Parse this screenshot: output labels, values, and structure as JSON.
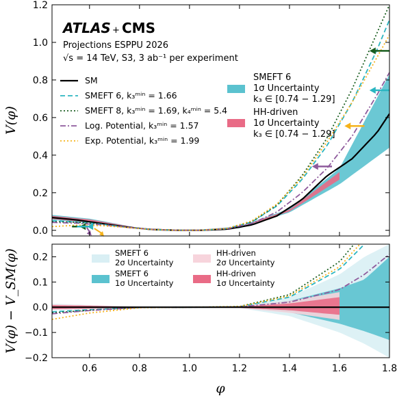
{
  "chart_data": [
    {
      "type": "line",
      "panel": "top",
      "ylabel": "V(φ)",
      "xlim": [
        0.45,
        1.8
      ],
      "ylim": [
        -0.03,
        1.2
      ],
      "xticks": [
        0.6,
        0.8,
        1.0,
        1.2,
        1.4,
        1.6,
        1.8
      ],
      "yticks": [
        0.0,
        0.2,
        0.4,
        0.6,
        0.8,
        1.0,
        1.2
      ],
      "ytick_labels": [
        "0.0",
        "0.2",
        "0.4",
        "0.6",
        "0.8",
        "1.0",
        "1.2"
      ],
      "annotation": {
        "atlas": "ATLAS",
        "plus": "+",
        "cms": "CMS",
        "line1": "Projections ESPPU 2026",
        "line2": "√s = 14 TeV, S3, 3 ab⁻¹ per experiment"
      },
      "series": [
        {
          "name": "SM",
          "color": "#000000",
          "style": "solid",
          "x": [
            0.45,
            0.55,
            0.65,
            0.75,
            0.85,
            0.95,
            1.0,
            1.05,
            1.15,
            1.25,
            1.35,
            1.45,
            1.55,
            1.65,
            1.75,
            1.8
          ],
          "y": [
            0.068,
            0.055,
            0.036,
            0.017,
            0.004,
            0.0003,
            0.0,
            0.0003,
            0.0059,
            0.029,
            0.077,
            0.164,
            0.29,
            0.38,
            0.52,
            0.62
          ]
        },
        {
          "name": "SMEFT 6, k₃ᵐⁱⁿ = 1.66",
          "color": "#2bb5c1",
          "style": "dashed",
          "x": [
            0.45,
            0.55,
            0.65,
            0.75,
            0.85,
            0.95,
            1.0,
            1.05,
            1.15,
            1.25,
            1.35,
            1.45,
            1.55,
            1.65,
            1.75,
            1.8
          ],
          "y": [
            0.05,
            0.045,
            0.032,
            0.016,
            0.004,
            0.0003,
            0.0,
            0.0004,
            0.009,
            0.045,
            0.13,
            0.27,
            0.45,
            0.68,
            0.96,
            1.12
          ]
        },
        {
          "name": "SMEFT 8, k₃ᵐⁱⁿ = 1.69, k₄ᵐⁱⁿ = 5.4",
          "color": "#1a5e20",
          "style": "dotted",
          "x": [
            0.45,
            0.55,
            0.65,
            0.75,
            0.85,
            0.95,
            1.0,
            1.05,
            1.15,
            1.25,
            1.35,
            1.45,
            1.55,
            1.65,
            1.75,
            1.8
          ],
          "y": [
            0.046,
            0.043,
            0.031,
            0.016,
            0.004,
            0.0003,
            0.0,
            0.0004,
            0.009,
            0.046,
            0.135,
            0.29,
            0.49,
            0.75,
            1.05,
            1.2
          ]
        },
        {
          "name": "Log. Potential, k₃ᵐⁱⁿ = 1.57",
          "color": "#8e5a9c",
          "style": "dashdot",
          "x": [
            0.45,
            0.55,
            0.65,
            0.75,
            0.85,
            0.95,
            1.0,
            1.05,
            1.15,
            1.25,
            1.35,
            1.45,
            1.55,
            1.65,
            1.75,
            1.8
          ],
          "y": [
            0.042,
            0.038,
            0.029,
            0.016,
            0.004,
            0.0003,
            0.0,
            0.0004,
            0.008,
            0.037,
            0.098,
            0.2,
            0.33,
            0.5,
            0.72,
            0.84
          ]
        },
        {
          "name": "Exp. Potential, k₃ᵐⁱⁿ = 1.99",
          "color": "#f5b21b",
          "style": "dotted",
          "x": [
            0.45,
            0.55,
            0.65,
            0.75,
            0.85,
            0.95,
            1.0,
            1.05,
            1.15,
            1.25,
            1.35,
            1.45,
            1.55,
            1.65,
            1.75,
            1.8
          ],
          "y": [
            0.02,
            0.027,
            0.025,
            0.015,
            0.004,
            0.0003,
            0.0,
            0.0005,
            0.01,
            0.05,
            0.14,
            0.28,
            0.47,
            0.68,
            0.92,
            1.04
          ]
        }
      ],
      "bands": [
        {
          "name": "SMEFT 6",
          "label_lines": [
            "SMEFT 6",
            "1σ Uncertainty",
            "k₃ ∈ [0.74 − 1.29]"
          ],
          "color": "#5bc2cf",
          "x": [
            0.45,
            0.6,
            0.8,
            1.0,
            1.2,
            1.4,
            1.6,
            1.8
          ],
          "low": [
            0.055,
            0.04,
            0.01,
            0.0,
            0.011,
            0.095,
            0.245,
            0.44
          ],
          "high": [
            0.082,
            0.062,
            0.012,
            0.0,
            0.02,
            0.115,
            0.33,
            0.83
          ]
        },
        {
          "name": "HH-driven",
          "label_lines": [
            "HH-driven",
            "1σ Uncertainty",
            "k₃ ∈ [0.74 − 1.29]"
          ],
          "color": "#e96b86",
          "x": [
            0.45,
            0.6,
            0.8,
            1.0,
            1.2,
            1.4,
            1.6
          ],
          "low": [
            0.06,
            0.042,
            0.01,
            0.0,
            0.013,
            0.1,
            0.27
          ],
          "high": [
            0.077,
            0.058,
            0.012,
            0.0,
            0.018,
            0.11,
            0.31
          ]
        }
      ],
      "arrows": [
        {
          "x_from": 1.8,
          "x_to": 1.72,
          "y": 0.955,
          "color": "#1a5e20"
        },
        {
          "x_from": 1.8,
          "x_to": 1.72,
          "y": 0.745,
          "color": "#2bb5c1"
        },
        {
          "x_from": 1.7,
          "x_to": 1.62,
          "y": 0.555,
          "color": "#f5b21b"
        },
        {
          "x_from": 1.57,
          "x_to": 1.49,
          "y": 0.34,
          "color": "#8e5a9c"
        },
        {
          "x_from": 0.53,
          "x_to": 0.56,
          "y": 0.02,
          "color": "#1a5e20"
        },
        {
          "x_from": 0.55,
          "x_to": 0.59,
          "y": 0.02,
          "color": "#2bb5c1"
        },
        {
          "x_from": 0.6,
          "x_to": 0.6,
          "y": 0.015,
          "color": "#8e5a9c"
        },
        {
          "x_from": 0.63,
          "x_to": 0.65,
          "y": 0.01,
          "color": "#f5b21b"
        }
      ]
    },
    {
      "type": "line",
      "panel": "bottom",
      "xlabel": "φ",
      "ylabel": "V(φ) − V_SM(φ)",
      "xlim": [
        0.45,
        1.8
      ],
      "ylim": [
        -0.2,
        0.25
      ],
      "xticks": [
        0.6,
        0.8,
        1.0,
        1.2,
        1.4,
        1.6,
        1.8
      ],
      "xtick_labels": [
        "0.6",
        "0.8",
        "1.0",
        "1.2",
        "1.4",
        "1.6",
        "1.8"
      ],
      "yticks": [
        -0.2,
        -0.1,
        0.0,
        0.1,
        0.2
      ],
      "ytick_labels": [
        "−0.2",
        "−0.1",
        "0.0",
        "0.1",
        "0.2"
      ],
      "bands": [
        {
          "name": "SMEFT 6 2σ Uncertainty",
          "label_lines": [
            "SMEFT 6",
            "2σ Uncertainty"
          ],
          "color": "#d9eff4",
          "x": [
            0.45,
            0.6,
            0.8,
            1.0,
            1.2,
            1.4,
            1.6,
            1.7,
            1.8
          ],
          "low": [
            -0.012,
            -0.008,
            -0.002,
            0.0,
            -0.003,
            -0.035,
            -0.1,
            -0.145,
            -0.2
          ],
          "high": [
            0.014,
            0.009,
            0.002,
            0.0,
            0.003,
            0.04,
            0.13,
            0.2,
            0.25
          ]
        },
        {
          "name": "SMEFT 6 1σ Uncertainty",
          "label_lines": [
            "SMEFT 6",
            "1σ Uncertainty"
          ],
          "color": "#5bc2cf",
          "x": [
            0.45,
            0.6,
            0.8,
            1.0,
            1.2,
            1.4,
            1.6,
            1.7,
            1.8
          ],
          "low": [
            -0.009,
            -0.006,
            -0.001,
            0.0,
            -0.002,
            -0.02,
            -0.065,
            -0.095,
            -0.13
          ],
          "high": [
            0.01,
            0.007,
            0.0015,
            0.0,
            0.002,
            0.025,
            0.075,
            0.11,
            0.2
          ]
        },
        {
          "name": "HH-driven 2σ Uncertainty",
          "label_lines": [
            "HH-driven",
            "2σ Uncertainty"
          ],
          "color": "#f7d4dc",
          "x": [
            0.45,
            0.6,
            0.8,
            1.0,
            1.2,
            1.4,
            1.6
          ],
          "low": [
            -0.01,
            -0.007,
            -0.001,
            0.0,
            -0.003,
            -0.022,
            -0.05
          ],
          "high": [
            0.011,
            0.008,
            0.0015,
            0.0,
            0.003,
            0.025,
            0.06
          ]
        },
        {
          "name": "HH-driven 1σ Uncertainty",
          "label_lines": [
            "HH-driven",
            "1σ Uncertainty"
          ],
          "color": "#e96b86",
          "x": [
            0.45,
            0.6,
            0.8,
            1.0,
            1.2,
            1.4,
            1.6
          ],
          "low": [
            -0.007,
            -0.005,
            -0.001,
            0.0,
            -0.002,
            -0.012,
            -0.03
          ],
          "high": [
            0.008,
            0.006,
            0.001,
            0.0,
            0.002,
            0.015,
            0.04
          ]
        }
      ],
      "series": [
        {
          "name": "SMEFT 6",
          "color": "#2bb5c1",
          "style": "dashed",
          "x": [
            0.45,
            0.6,
            0.8,
            1.0,
            1.2,
            1.4,
            1.6,
            1.7,
            1.8
          ],
          "y": [
            -0.018,
            -0.01,
            -0.001,
            0.0,
            0.002,
            0.04,
            0.15,
            0.25,
            0.35
          ]
        },
        {
          "name": "SMEFT 8",
          "color": "#1a5e20",
          "style": "dotted",
          "x": [
            0.45,
            0.6,
            0.8,
            1.0,
            1.2,
            1.4,
            1.6,
            1.7,
            1.8
          ],
          "y": [
            -0.022,
            -0.012,
            -0.001,
            0.0,
            0.003,
            0.05,
            0.18,
            0.3,
            0.45
          ]
        },
        {
          "name": "Log. Potential",
          "color": "#8e5a9c",
          "style": "dashdot",
          "x": [
            0.45,
            0.6,
            0.8,
            1.0,
            1.2,
            1.4,
            1.6,
            1.7,
            1.8
          ],
          "y": [
            -0.026,
            -0.013,
            -0.001,
            0.0,
            0.0015,
            0.02,
            0.07,
            0.13,
            0.21
          ]
        },
        {
          "name": "Exp. Potential",
          "color": "#f5b21b",
          "style": "dotted",
          "x": [
            0.45,
            0.6,
            0.8,
            1.0,
            1.2,
            1.4,
            1.6,
            1.7,
            1.8
          ],
          "y": [
            -0.048,
            -0.023,
            -0.002,
            0.0,
            0.003,
            0.045,
            0.16,
            0.27,
            0.4
          ]
        },
        {
          "name": "SM",
          "color": "#000000",
          "style": "solid",
          "x": [
            0.45,
            1.8
          ],
          "y": [
            0.0,
            0.0
          ]
        }
      ]
    }
  ],
  "legend_top": [
    {
      "label": "SM",
      "color": "#000000",
      "style": "solid"
    },
    {
      "label": "SMEFT 6, k₃ᵐⁱⁿ = 1.66",
      "color": "#2bb5c1",
      "style": "dashed"
    },
    {
      "label": "SMEFT 8, k₃ᵐⁱⁿ = 1.69, k₄ᵐⁱⁿ = 5.4",
      "color": "#1a5e20",
      "style": "dotted"
    },
    {
      "label": "Log. Potential, k₃ᵐⁱⁿ = 1.57",
      "color": "#8e5a9c",
      "style": "dashdot"
    },
    {
      "label": "Exp. Potential, k₃ᵐⁱⁿ = 1.99",
      "color": "#f5b21b",
      "style": "dotted"
    }
  ]
}
